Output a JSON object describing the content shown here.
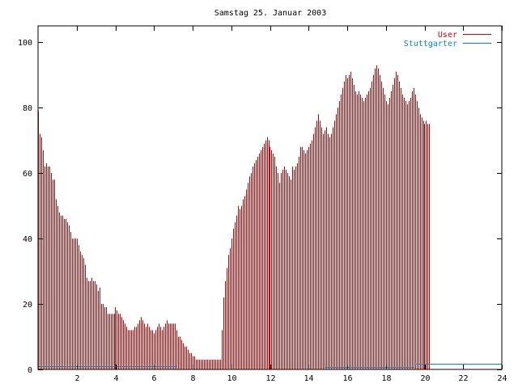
{
  "chart_data": {
    "type": "bar",
    "title": "Samstag 25. Januar 2003",
    "xlabel": "",
    "ylabel": "",
    "xlim": [
      0,
      24
    ],
    "ylim": [
      0,
      105
    ],
    "x_ticks": [
      2,
      4,
      6,
      8,
      10,
      12,
      14,
      16,
      18,
      20,
      22,
      24
    ],
    "y_ticks": [
      0,
      20,
      40,
      60,
      80,
      100
    ],
    "grid": false,
    "legend_position": "top-right",
    "series": [
      {
        "name": "User",
        "color": "#d40000",
        "step_hours": 0.083333,
        "values": [
          79,
          72,
          71,
          67,
          62,
          63,
          62,
          62,
          60,
          58,
          58,
          52,
          50,
          48,
          47,
          47,
          46,
          46,
          45,
          44,
          42,
          40,
          40,
          40,
          40,
          38,
          36,
          35,
          34,
          32,
          28,
          27,
          27,
          28,
          27,
          27,
          26,
          24,
          25,
          20,
          20,
          19,
          19,
          17,
          17,
          17,
          17,
          17,
          19,
          18,
          17,
          17,
          16,
          15,
          14,
          13,
          12,
          12,
          12,
          12,
          13,
          13,
          14,
          15,
          16,
          15,
          14,
          13,
          14,
          13,
          12,
          12,
          11,
          12,
          13,
          14,
          13,
          12,
          13,
          14,
          15,
          14,
          14,
          14,
          14,
          14,
          12,
          10,
          10,
          9,
          8,
          7,
          7,
          6,
          5,
          5,
          4,
          4,
          3,
          3,
          3,
          3,
          3,
          3,
          3,
          3,
          3,
          3,
          3,
          3,
          3,
          3,
          3,
          3,
          12,
          22,
          27,
          31,
          35,
          37,
          40,
          43,
          45,
          47,
          50,
          49,
          50,
          52,
          53,
          55,
          57,
          59,
          60,
          62,
          63,
          64,
          65,
          66,
          67,
          68,
          69,
          70,
          71,
          70,
          68,
          67,
          66,
          65,
          62,
          60,
          57,
          60,
          61,
          62,
          61,
          60,
          59,
          58,
          62,
          61,
          62,
          63,
          65,
          68,
          68,
          67,
          66,
          67,
          68,
          69,
          70,
          72,
          74,
          76,
          78,
          76,
          74,
          72,
          73,
          74,
          72,
          71,
          72,
          74,
          76,
          78,
          80,
          82,
          84,
          86,
          88,
          90,
          89,
          90,
          91,
          89,
          87,
          85,
          84,
          85,
          84,
          83,
          82,
          83,
          84,
          85,
          86,
          88,
          90,
          92,
          93,
          92,
          90,
          88,
          86,
          84,
          82,
          81,
          83,
          85,
          87,
          89,
          91,
          90,
          88,
          86,
          84,
          83,
          82,
          81,
          82,
          83,
          85,
          86,
          84,
          82,
          80,
          78,
          77,
          76,
          75,
          76,
          75,
          75
        ]
      },
      {
        "name": "Stuttgarter",
        "color": "#0088cc",
        "segments": [
          {
            "x_start": 0,
            "x_end": 7.2,
            "value": 0.9
          },
          {
            "x_start": 14.8,
            "x_end": 19.5,
            "value": 0.8
          },
          {
            "x_start": 19.5,
            "x_end": 24,
            "value": 1.8
          }
        ]
      }
    ]
  }
}
